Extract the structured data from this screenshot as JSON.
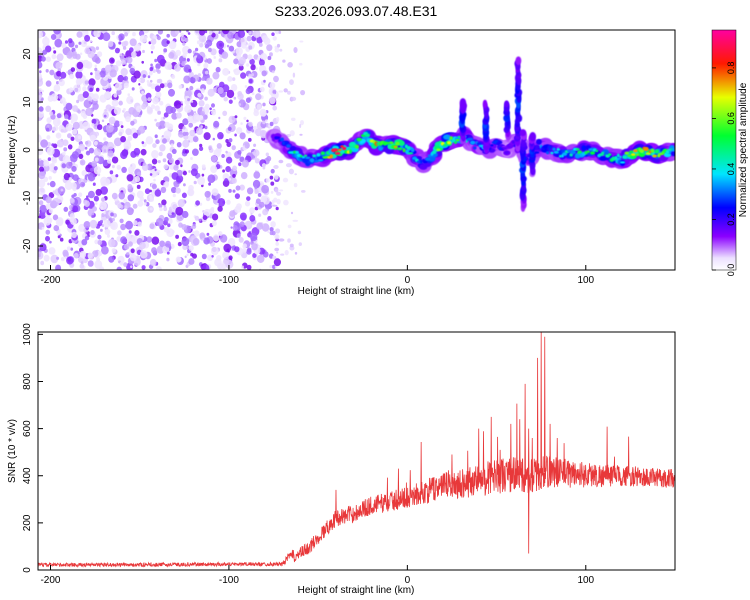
{
  "title": "S233.2026.093.07.48.E31",
  "chart_data": [
    {
      "type": "heatmap",
      "xlabel": "Height of straight line (km)",
      "ylabel": "Frequency (Hz)",
      "xlim": [
        -207,
        150
      ],
      "ylim": [
        -25,
        25
      ],
      "xticks": [
        -200,
        -100,
        0,
        100
      ],
      "yticks": [
        -20,
        -10,
        0,
        10,
        20
      ],
      "colorbar": {
        "label": "Normalized spectral amplitude",
        "range": [
          0,
          0.95
        ],
        "ticks": [
          "0.0",
          "0.2",
          "0.4",
          "0.6",
          "0.8"
        ],
        "colormap": [
          "#ffffff",
          "#8a00ff",
          "#0000ff",
          "#00e5ff",
          "#00ff30",
          "#e8ff00",
          "#ff1a00",
          "#ff00a0"
        ]
      },
      "noise_region_x": [
        -207,
        -75
      ],
      "ridge": {
        "x": [
          -75,
          -68,
          -62,
          -56,
          -50,
          -44,
          -38,
          -32,
          -26,
          -22,
          -18,
          -12,
          -6,
          0,
          6,
          10,
          16,
          22,
          28,
          32,
          38,
          44,
          50,
          56,
          62,
          68,
          74,
          80,
          90,
          100,
          110,
          120,
          130,
          140,
          150
        ],
        "freq": [
          3,
          1,
          -1,
          -2,
          -1.5,
          -1,
          0,
          0,
          2,
          3,
          1,
          0.8,
          1,
          0.5,
          -2,
          -3,
          0,
          2,
          2,
          3,
          1,
          0,
          1,
          0,
          2,
          -2,
          1,
          0,
          -1,
          0,
          -1,
          -2,
          0,
          -1,
          0
        ],
        "amplitude": [
          0.2,
          0.3,
          0.5,
          0.4,
          0.4,
          0.6,
          0.85,
          0.6,
          0.5,
          0.45,
          0.7,
          0.5,
          0.7,
          0.5,
          0.4,
          0.3,
          0.55,
          0.7,
          0.5,
          0.4,
          0.3,
          0.35,
          0.3,
          0.2,
          0.25,
          0.2,
          0.3,
          0.35,
          0.4,
          0.5,
          0.4,
          0.5,
          0.7,
          0.6,
          0.4
        ]
      },
      "streaks": [
        {
          "x": 31,
          "freq_from": 2,
          "freq_to": 10
        },
        {
          "x": 44,
          "freq_from": 0,
          "freq_to": 10
        },
        {
          "x": 56,
          "freq_from": 3,
          "freq_to": 10
        },
        {
          "x": 62,
          "freq_from": 0,
          "freq_to": 19
        },
        {
          "x": 65,
          "freq_from": -12,
          "freq_to": 4
        },
        {
          "x": 70,
          "freq_from": -5,
          "freq_to": 3
        }
      ]
    },
    {
      "type": "line",
      "xlabel": "Height of straight line (km)",
      "ylabel": "SNR (10 * v/v)",
      "xlim": [
        -207,
        150
      ],
      "ylim": [
        0,
        1010
      ],
      "xticks": [
        -200,
        -100,
        0,
        100
      ],
      "yticks": [
        0,
        200,
        400,
        600,
        800,
        1000
      ],
      "color": "#e8383a",
      "baseline": {
        "x": [
          -207,
          -150,
          -100,
          -70,
          -66,
          -62,
          -55,
          -45,
          -40,
          -30,
          -20,
          -10,
          0,
          10,
          20,
          30,
          40,
          50,
          60,
          70,
          80,
          90,
          100,
          110,
          120,
          130,
          140,
          150
        ],
        "y": [
          22,
          22,
          25,
          25,
          60,
          60,
          95,
          180,
          220,
          240,
          275,
          290,
          310,
          330,
          360,
          370,
          380,
          400,
          405,
          400,
          420,
          410,
          405,
          400,
          400,
          395,
          390,
          390
        ]
      },
      "noise_amplitude": {
        "x": [
          -207,
          -70,
          -65,
          -40,
          0,
          20,
          40,
          60,
          80,
          100,
          120,
          150
        ],
        "y": [
          8,
          8,
          25,
          35,
          45,
          60,
          70,
          80,
          70,
          55,
          45,
          40
        ]
      },
      "spikes": [
        {
          "x": -40,
          "y": 340
        },
        {
          "x": -5,
          "y": 430
        },
        {
          "x": 25,
          "y": 490
        },
        {
          "x": 40,
          "y": 600
        },
        {
          "x": 47,
          "y": 650
        },
        {
          "x": 52,
          "y": 510
        },
        {
          "x": 58,
          "y": 620
        },
        {
          "x": 63,
          "y": 640
        },
        {
          "x": 66,
          "y": 790
        },
        {
          "x": 68,
          "y": 600
        },
        {
          "x": 70,
          "y": 560
        },
        {
          "x": 73,
          "y": 900
        },
        {
          "x": 75,
          "y": 1010
        },
        {
          "x": 77,
          "y": 990
        },
        {
          "x": 80,
          "y": 620
        },
        {
          "x": 84,
          "y": 560
        },
        {
          "x": 68,
          "y": 70
        }
      ]
    }
  ]
}
